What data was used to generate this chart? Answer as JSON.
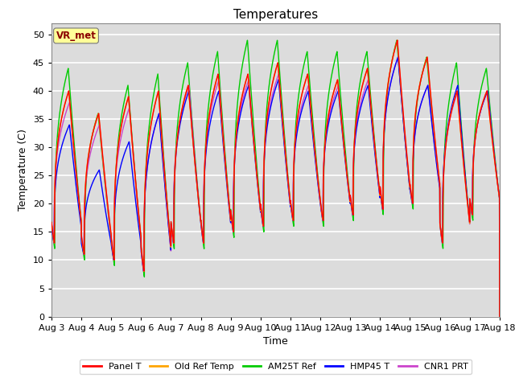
{
  "title": "Temperatures",
  "xlabel": "Time",
  "ylabel": "Temperature (C)",
  "ylim": [
    0,
    52
  ],
  "yticks": [
    0,
    5,
    10,
    15,
    20,
    25,
    30,
    35,
    40,
    45,
    50
  ],
  "date_labels": [
    "Aug 3",
    "Aug 4",
    "Aug 5",
    "Aug 6",
    "Aug 7",
    "Aug 8",
    "Aug 9",
    "Aug 10",
    "Aug 11",
    "Aug 12",
    "Aug 13",
    "Aug 14",
    "Aug 15",
    "Aug 16",
    "Aug 17",
    "Aug 18"
  ],
  "annotation": "VR_met",
  "annotation_color": "#8B0000",
  "annotation_bg": "#FFFF99",
  "series_colors": {
    "Panel T": "#FF0000",
    "Old Ref Temp": "#FFA500",
    "AM25T Ref": "#00CC00",
    "HMP45 T": "#0000FF",
    "CNR1 PRT": "#CC44CC"
  },
  "background_color": "#DCDCDC",
  "grid_color": "#FFFFFF",
  "fig_bg": "#FFFFFF",
  "n_days": 15,
  "points_per_day": 288,
  "min_temps": [
    13,
    11,
    10,
    8,
    13,
    13,
    15,
    16,
    17,
    17,
    18,
    19,
    20,
    13,
    18
  ],
  "max_panel": [
    40,
    36,
    39,
    40,
    41,
    43,
    43,
    45,
    43,
    42,
    44,
    49,
    46,
    40,
    40
  ],
  "max_am25t": [
    44,
    36,
    41,
    43,
    45,
    47,
    49,
    49,
    47,
    47,
    47,
    49,
    46,
    45,
    44
  ],
  "max_hmp45": [
    34,
    26,
    31,
    36,
    40,
    40,
    41,
    42,
    40,
    40,
    41,
    46,
    41,
    41,
    40
  ],
  "max_cnr1": [
    38,
    34,
    37,
    36,
    41,
    42,
    42,
    43,
    41,
    41,
    42,
    46,
    41,
    40,
    40
  ],
  "peak_time": 0.58,
  "rise_sharpness": 3.5,
  "fall_sharpness": 1.2
}
